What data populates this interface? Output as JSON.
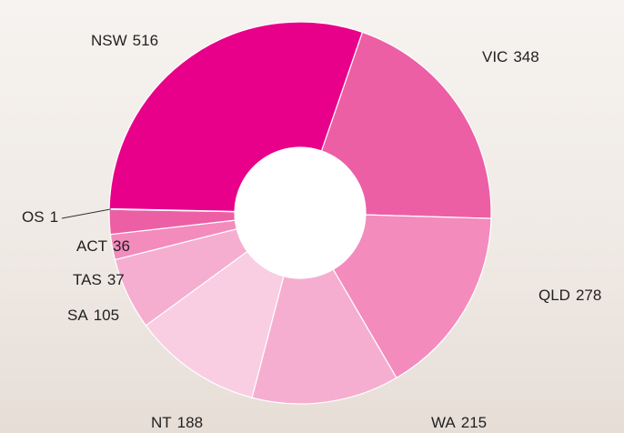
{
  "chart_data": {
    "type": "donut",
    "categories": [
      "VIC",
      "QLD",
      "WA",
      "NT",
      "SA",
      "TAS",
      "ACT",
      "OS",
      "NSW"
    ],
    "values": [
      348,
      278,
      215,
      188,
      105,
      37,
      36,
      1,
      516
    ],
    "colors": [
      "#ec5fa5",
      "#f38bbd",
      "#f6aed0",
      "#f9cde2",
      "#f6aed0",
      "#f38bbd",
      "#ec5fa5",
      "#e8489a",
      "#e8008a"
    ]
  }
}
